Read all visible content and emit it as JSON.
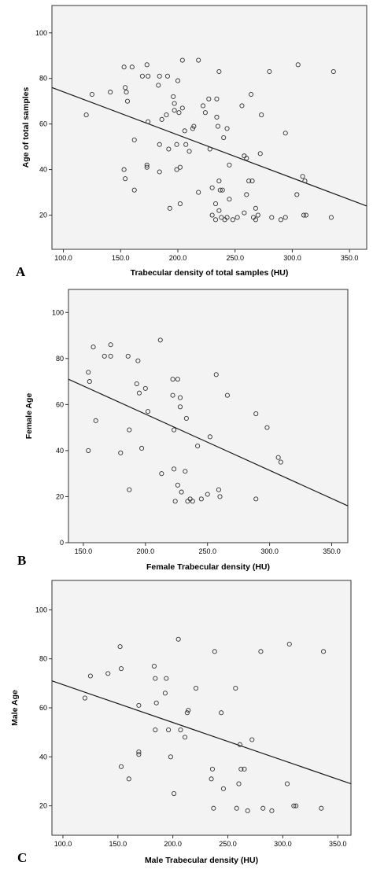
{
  "chart_data": [
    {
      "type": "scatter",
      "panel_label": "A",
      "xlabel": "Trabecular density of total samples (HU)",
      "ylabel": "Age of total samples",
      "xlim": [
        90,
        365
      ],
      "ylim": [
        5,
        112
      ],
      "xticks": [
        100,
        150,
        200,
        250,
        300,
        350
      ],
      "xtick_labels": [
        "100.0",
        "150.0",
        "200.0",
        "250.0",
        "300.0",
        "350.0"
      ],
      "yticks": [
        20,
        40,
        60,
        80,
        100
      ],
      "ytick_labels": [
        "20",
        "40",
        "60",
        "80",
        "100"
      ],
      "fit_line": [
        [
          90,
          76
        ],
        [
          365,
          24
        ]
      ],
      "points": [
        [
          120,
          64
        ],
        [
          125,
          73
        ],
        [
          141,
          74
        ],
        [
          153,
          85
        ],
        [
          154,
          76
        ],
        [
          155,
          74
        ],
        [
          156,
          70
        ],
        [
          153,
          40
        ],
        [
          154,
          36
        ],
        [
          160,
          85
        ],
        [
          162,
          53
        ],
        [
          162,
          31
        ],
        [
          169,
          81
        ],
        [
          173,
          86
        ],
        [
          174,
          81
        ],
        [
          173,
          41
        ],
        [
          173,
          42
        ],
        [
          174,
          61
        ],
        [
          183,
          77
        ],
        [
          184,
          81
        ],
        [
          184,
          51
        ],
        [
          184,
          39
        ],
        [
          186,
          62
        ],
        [
          190,
          64
        ],
        [
          191,
          81
        ],
        [
          192,
          49
        ],
        [
          193,
          23
        ],
        [
          196,
          72
        ],
        [
          197,
          69
        ],
        [
          197,
          66
        ],
        [
          199,
          51
        ],
        [
          199,
          40
        ],
        [
          200,
          79
        ],
        [
          201,
          65
        ],
        [
          202,
          25
        ],
        [
          202,
          41
        ],
        [
          204,
          88
        ],
        [
          204,
          67
        ],
        [
          206,
          57
        ],
        [
          207,
          51
        ],
        [
          210,
          48
        ],
        [
          213,
          58
        ],
        [
          214,
          59
        ],
        [
          218,
          88
        ],
        [
          218,
          30
        ],
        [
          222,
          68
        ],
        [
          224,
          65
        ],
        [
          227,
          71
        ],
        [
          228,
          49
        ],
        [
          230,
          32
        ],
        [
          230,
          20
        ],
        [
          233,
          25
        ],
        [
          233,
          18
        ],
        [
          234,
          71
        ],
        [
          234,
          63
        ],
        [
          235,
          59
        ],
        [
          236,
          83
        ],
        [
          236,
          22
        ],
        [
          236,
          35
        ],
        [
          237,
          31
        ],
        [
          238,
          19
        ],
        [
          239,
          31
        ],
        [
          240,
          54
        ],
        [
          241,
          18
        ],
        [
          243,
          58
        ],
        [
          243,
          19
        ],
        [
          245,
          42
        ],
        [
          245,
          27
        ],
        [
          248,
          18
        ],
        [
          252,
          19
        ],
        [
          256,
          68
        ],
        [
          258,
          46
        ],
        [
          258,
          21
        ],
        [
          260,
          29
        ],
        [
          260,
          45
        ],
        [
          262,
          35
        ],
        [
          264,
          73
        ],
        [
          265,
          35
        ],
        [
          266,
          19
        ],
        [
          268,
          23
        ],
        [
          268,
          18
        ],
        [
          270,
          20
        ],
        [
          272,
          47
        ],
        [
          273,
          64
        ],
        [
          280,
          83
        ],
        [
          282,
          19
        ],
        [
          290,
          18
        ],
        [
          294,
          56
        ],
        [
          294,
          19
        ],
        [
          304,
          29
        ],
        [
          305,
          86
        ],
        [
          309,
          37
        ],
        [
          310,
          20
        ],
        [
          311,
          35
        ],
        [
          312,
          20
        ],
        [
          334,
          19
        ],
        [
          336,
          83
        ]
      ]
    },
    {
      "type": "scatter",
      "panel_label": "B",
      "xlabel": "Female Trabecular density (HU)",
      "ylabel": "Female Age",
      "xlim": [
        138,
        363
      ],
      "ylim": [
        0,
        110
      ],
      "xticks": [
        150,
        200,
        250,
        300,
        350
      ],
      "xtick_labels": [
        "150.0",
        "200.0",
        "250.0",
        "300.0",
        "350.0"
      ],
      "yticks": [
        0,
        20,
        40,
        60,
        80,
        100
      ],
      "ytick_labels": [
        "0",
        "20",
        "40",
        "60",
        "80",
        "100"
      ],
      "fit_line": [
        [
          138,
          71
        ],
        [
          363,
          16
        ]
      ],
      "points": [
        [
          154,
          40
        ],
        [
          154,
          74
        ],
        [
          155,
          70
        ],
        [
          158,
          85
        ],
        [
          160,
          53
        ],
        [
          167,
          81
        ],
        [
          172,
          86
        ],
        [
          172,
          81
        ],
        [
          180,
          39
        ],
        [
          186,
          81
        ],
        [
          187,
          49
        ],
        [
          187,
          23
        ],
        [
          193,
          69
        ],
        [
          194,
          79
        ],
        [
          195,
          65
        ],
        [
          197,
          41
        ],
        [
          200,
          67
        ],
        [
          202,
          57
        ],
        [
          212,
          88
        ],
        [
          213,
          30
        ],
        [
          222,
          71
        ],
        [
          222,
          64
        ],
        [
          223,
          49
        ],
        [
          223,
          32
        ],
        [
          224,
          18
        ],
        [
          226,
          25
        ],
        [
          226,
          71
        ],
        [
          228,
          59
        ],
        [
          228,
          63
        ],
        [
          229,
          22
        ],
        [
          232,
          31
        ],
        [
          233,
          54
        ],
        [
          234,
          18
        ],
        [
          236,
          19
        ],
        [
          238,
          18
        ],
        [
          242,
          42
        ],
        [
          245,
          19
        ],
        [
          250,
          21
        ],
        [
          252,
          46
        ],
        [
          257,
          73
        ],
        [
          259,
          23
        ],
        [
          260,
          20
        ],
        [
          266,
          64
        ],
        [
          289,
          56
        ],
        [
          289,
          19
        ],
        [
          298,
          50
        ],
        [
          307,
          37
        ],
        [
          309,
          35
        ]
      ]
    },
    {
      "type": "scatter",
      "panel_label": "C",
      "xlabel": "Male Trabecular density (HU)",
      "ylabel": "Male Age",
      "xlim": [
        90,
        362
      ],
      "ylim": [
        8,
        112
      ],
      "xticks": [
        100,
        150,
        200,
        250,
        300,
        350
      ],
      "xtick_labels": [
        "100.0",
        "150.0",
        "200.0",
        "250.0",
        "300.0",
        "350.0"
      ],
      "yticks": [
        20,
        40,
        60,
        80,
        100
      ],
      "ytick_labels": [
        "20",
        "40",
        "60",
        "80",
        "100"
      ],
      "fit_line": [
        [
          90,
          71
        ],
        [
          362,
          29
        ]
      ],
      "points": [
        [
          120,
          64
        ],
        [
          125,
          73
        ],
        [
          141,
          74
        ],
        [
          152,
          85
        ],
        [
          153,
          76
        ],
        [
          153,
          36
        ],
        [
          160,
          31
        ],
        [
          169,
          61
        ],
        [
          169,
          41
        ],
        [
          169,
          42
        ],
        [
          183,
          77
        ],
        [
          184,
          72
        ],
        [
          184,
          51
        ],
        [
          185,
          62
        ],
        [
          193,
          66
        ],
        [
          194,
          72
        ],
        [
          196,
          51
        ],
        [
          198,
          40
        ],
        [
          201,
          25
        ],
        [
          205,
          88
        ],
        [
          207,
          51
        ],
        [
          211,
          48
        ],
        [
          213,
          58
        ],
        [
          214,
          59
        ],
        [
          221,
          68
        ],
        [
          235,
          31
        ],
        [
          236,
          35
        ],
        [
          237,
          19
        ],
        [
          238,
          83
        ],
        [
          244,
          58
        ],
        [
          246,
          27
        ],
        [
          257,
          68
        ],
        [
          258,
          19
        ],
        [
          260,
          29
        ],
        [
          261,
          45
        ],
        [
          262,
          35
        ],
        [
          265,
          35
        ],
        [
          268,
          18
        ],
        [
          272,
          47
        ],
        [
          280,
          83
        ],
        [
          282,
          19
        ],
        [
          290,
          18
        ],
        [
          304,
          29
        ],
        [
          306,
          86
        ],
        [
          310,
          20
        ],
        [
          312,
          20
        ],
        [
          335,
          19
        ],
        [
          337,
          83
        ]
      ]
    }
  ]
}
